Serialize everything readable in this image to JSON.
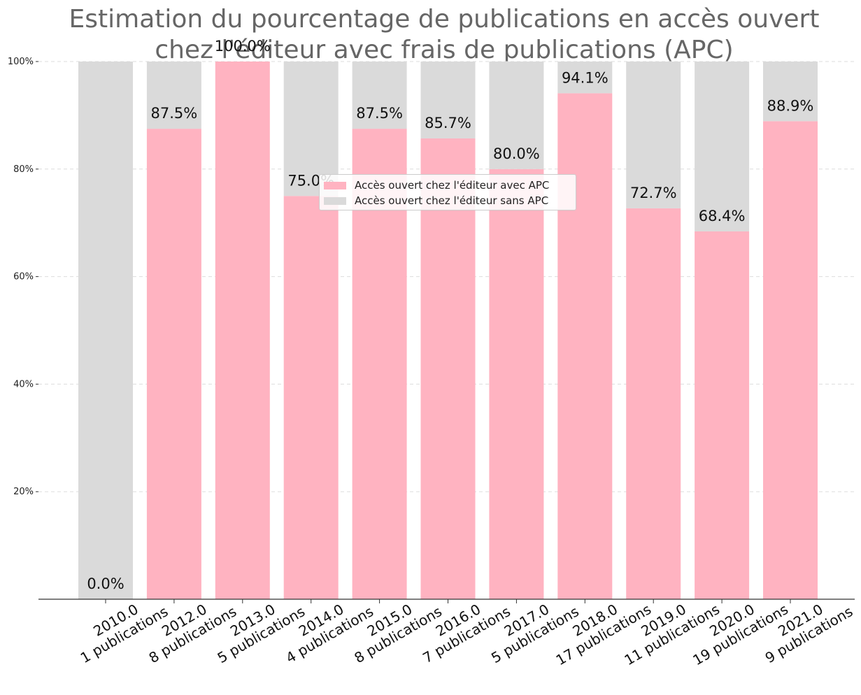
{
  "chart_data": {
    "type": "bar",
    "stacked": true,
    "title": [
      "Estimation du pourcentage de publications en accès ouvert",
      "chez l'éditeur avec frais de publications (APC)"
    ],
    "categories": [
      [
        "2010.0",
        "1 publications"
      ],
      [
        "2012.0",
        "8 publications"
      ],
      [
        "2013.0",
        "5 publications"
      ],
      [
        "2014.0",
        "4 publications"
      ],
      [
        "2015.0",
        "8 publications"
      ],
      [
        "2016.0",
        "7 publications"
      ],
      [
        "2017.0",
        "5 publications"
      ],
      [
        "2018.0",
        "17 publications"
      ],
      [
        "2019.0",
        "11 publications"
      ],
      [
        "2020.0",
        "19 publications"
      ],
      [
        "2021.0",
        "9 publications"
      ]
    ],
    "series": [
      {
        "name": "Accès ouvert chez l'éditeur avec APC",
        "color": "#ffb3c1",
        "values": [
          0.0,
          87.5,
          100.0,
          75.0,
          87.5,
          85.7,
          80.0,
          94.1,
          72.7,
          68.4,
          88.9
        ]
      },
      {
        "name": "Accès ouvert chez l'éditeur sans APC",
        "color": "#dadada",
        "values": [
          100.0,
          12.5,
          0.0,
          25.0,
          12.5,
          14.3,
          20.0,
          5.9,
          27.3,
          31.6,
          11.1
        ]
      }
    ],
    "data_labels": [
      "0.0%",
      "87.5%",
      "100.0%",
      "75.0%",
      "87.5%",
      "85.7%",
      "80.0%",
      "94.1%",
      "72.7%",
      "68.4%",
      "88.9%"
    ],
    "yticks": [
      20,
      40,
      60,
      80,
      100
    ],
    "ytick_labels": [
      "20%",
      "40%",
      "60%",
      "80%",
      "100%"
    ],
    "ylim": [
      0,
      100
    ],
    "grid": "y-dashed",
    "legend_position": "upper-center"
  }
}
